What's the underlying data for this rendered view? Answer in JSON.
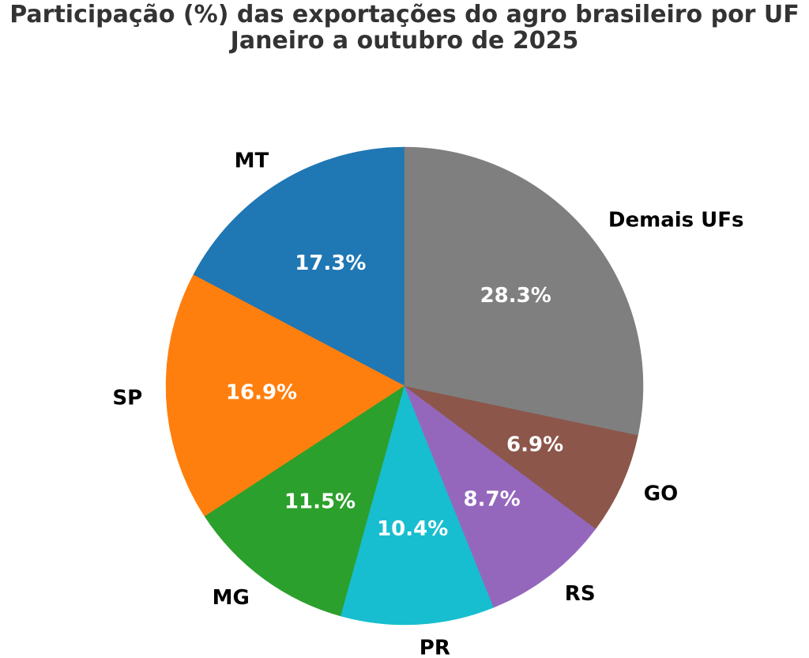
{
  "title": {
    "line1": "Participação (%) das exportações do agro brasileiro por UF",
    "line2": "Janeiro a outubro de 2025"
  },
  "chart_data": {
    "type": "pie",
    "title": "Participação (%) das exportações do agro brasileiro por UF",
    "subtitle": "Janeiro a outubro de 2025",
    "labels": [
      "MT",
      "SP",
      "MG",
      "PR",
      "RS",
      "GO",
      "Demais UFs"
    ],
    "values": [
      17.3,
      16.9,
      11.5,
      10.4,
      8.7,
      6.9,
      28.3
    ],
    "pct_labels": [
      "17.3%",
      "16.9%",
      "11.5%",
      "10.4%",
      "8.7%",
      "6.9%",
      "28.3%"
    ],
    "colors": [
      "#1f77b4",
      "#ff7f0e",
      "#2ca02c",
      "#17becf",
      "#9467bd",
      "#8c564b",
      "#7f7f7f"
    ],
    "start_angle_deg": 90,
    "counterclockwise": true,
    "pct_distance": 0.6,
    "label_distance": 1.1,
    "pct_color": "#ffffff",
    "label_color": "#000000",
    "legend": "none",
    "units": "%"
  }
}
